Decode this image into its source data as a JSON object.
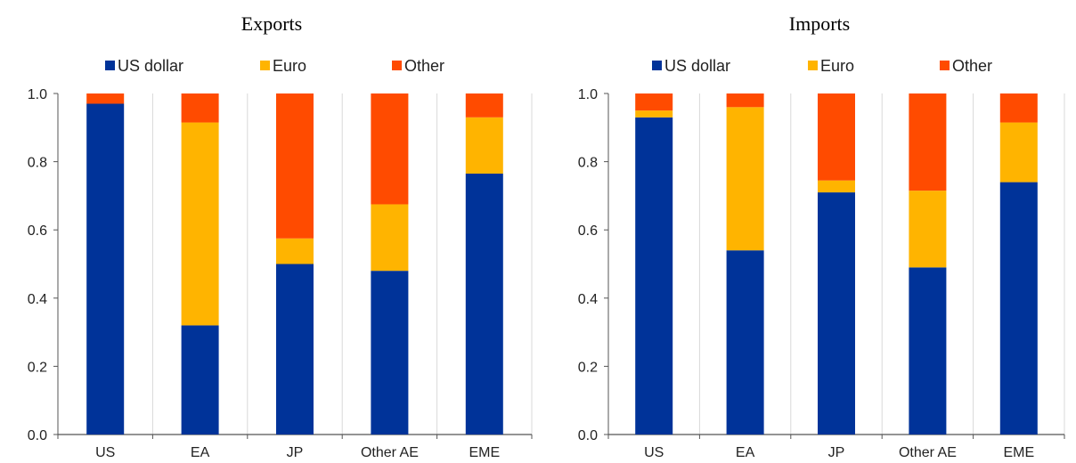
{
  "colors": {
    "US dollar": "#003399",
    "Euro": "#ffb400",
    "Other": "#ff4b00",
    "grid": "#d9d9d9",
    "axis": "#555555"
  },
  "chart_data": [
    {
      "type": "bar",
      "stacked": true,
      "title": "Exports",
      "categories": [
        "US",
        "EA",
        "JP",
        "Other AE",
        "EME"
      ],
      "series": [
        {
          "name": "US dollar",
          "values": [
            0.97,
            0.32,
            0.5,
            0.48,
            0.765
          ]
        },
        {
          "name": "Euro",
          "values": [
            0.0,
            0.595,
            0.075,
            0.195,
            0.165
          ]
        },
        {
          "name": "Other",
          "values": [
            0.03,
            0.085,
            0.425,
            0.325,
            0.07
          ]
        }
      ],
      "ylim": [
        0,
        1.0
      ],
      "yticks": [
        "0.0",
        "0.2",
        "0.4",
        "0.6",
        "0.8",
        "1.0"
      ],
      "grid": "vertical",
      "legend": "top"
    },
    {
      "type": "bar",
      "stacked": true,
      "title": "Imports",
      "categories": [
        "US",
        "EA",
        "JP",
        "Other AE",
        "EME"
      ],
      "series": [
        {
          "name": "US dollar",
          "values": [
            0.93,
            0.54,
            0.71,
            0.49,
            0.74
          ]
        },
        {
          "name": "Euro",
          "values": [
            0.02,
            0.42,
            0.035,
            0.225,
            0.175
          ]
        },
        {
          "name": "Other",
          "values": [
            0.05,
            0.04,
            0.255,
            0.285,
            0.085
          ]
        }
      ],
      "ylim": [
        0,
        1.0
      ],
      "yticks": [
        "0.0",
        "0.2",
        "0.4",
        "0.6",
        "0.8",
        "1.0"
      ],
      "grid": "vertical",
      "legend": "top"
    }
  ]
}
